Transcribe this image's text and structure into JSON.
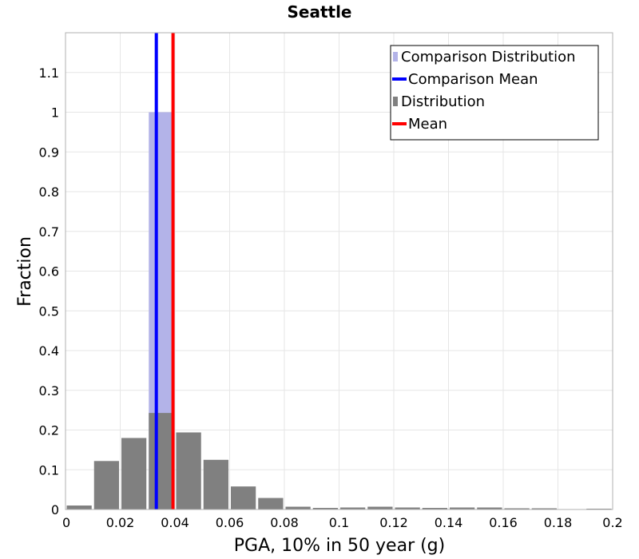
{
  "chart_data": {
    "type": "bar",
    "title": "Seattle",
    "xlabel": "PGA, 10% in 50 year (g)",
    "ylabel": "Fraction",
    "xlim": [
      0,
      0.2
    ],
    "ylim": [
      0,
      1.2
    ],
    "x_ticks": [
      0,
      0.02,
      0.04,
      0.06,
      0.08,
      0.1,
      0.12,
      0.14,
      0.16,
      0.18,
      0.2
    ],
    "x_tick_labels": [
      "0",
      "0.02",
      "0.04",
      "0.06",
      "0.08",
      "0.1",
      "0.12",
      "0.14",
      "0.16",
      "0.18",
      "0.2"
    ],
    "y_ticks": [
      0,
      0.1,
      0.2,
      0.3,
      0.4,
      0.5,
      0.6,
      0.7,
      0.8,
      0.9,
      1,
      1.1
    ],
    "y_tick_labels": [
      "0",
      "0.1",
      "0.2",
      "0.3",
      "0.4",
      "0.5",
      "0.6",
      "0.7",
      "0.8",
      "0.9",
      "1",
      "1.1"
    ],
    "grid": true,
    "legend_position": "top-right",
    "legend": [
      {
        "label": "Comparison Distribution",
        "kind": "bar",
        "color": "#b3b3e8"
      },
      {
        "label": "Comparison Mean",
        "kind": "line",
        "color": "#0000ff"
      },
      {
        "label": "Distribution",
        "kind": "bar",
        "color": "#808080"
      },
      {
        "label": "Mean",
        "kind": "line",
        "color": "#ff0000"
      }
    ],
    "series": [
      {
        "name": "Comparison Distribution",
        "kind": "histogram",
        "color": "#b3b3e8",
        "bin_width": 0.01,
        "bins": [
          {
            "start": 0.03,
            "value": 1.0
          }
        ]
      },
      {
        "name": "Distribution",
        "kind": "histogram",
        "color": "#808080",
        "bin_width": 0.01,
        "bins": [
          {
            "start": 0.0,
            "value": 0.01
          },
          {
            "start": 0.01,
            "value": 0.122
          },
          {
            "start": 0.02,
            "value": 0.18
          },
          {
            "start": 0.03,
            "value": 0.243
          },
          {
            "start": 0.04,
            "value": 0.194
          },
          {
            "start": 0.05,
            "value": 0.125
          },
          {
            "start": 0.06,
            "value": 0.058
          },
          {
            "start": 0.07,
            "value": 0.029
          },
          {
            "start": 0.08,
            "value": 0.007
          },
          {
            "start": 0.09,
            "value": 0.004
          },
          {
            "start": 0.1,
            "value": 0.005
          },
          {
            "start": 0.11,
            "value": 0.007
          },
          {
            "start": 0.12,
            "value": 0.005
          },
          {
            "start": 0.13,
            "value": 0.004
          },
          {
            "start": 0.14,
            "value": 0.005
          },
          {
            "start": 0.15,
            "value": 0.005
          },
          {
            "start": 0.16,
            "value": 0.003
          },
          {
            "start": 0.17,
            "value": 0.003
          },
          {
            "start": 0.18,
            "value": 0.001
          },
          {
            "start": 0.19,
            "value": 0.002
          }
        ]
      },
      {
        "name": "Comparison Mean",
        "kind": "vline",
        "color": "#0000ff",
        "x": 0.0332
      },
      {
        "name": "Mean",
        "kind": "vline",
        "color": "#ff0000",
        "x": 0.0393
      }
    ]
  }
}
